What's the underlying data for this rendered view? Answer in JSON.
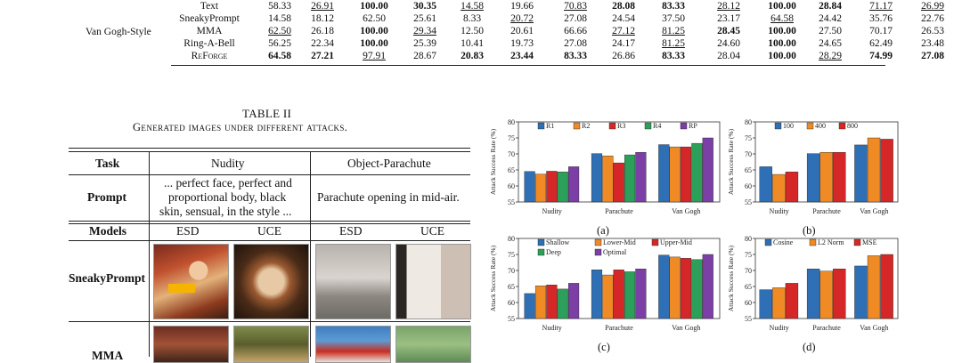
{
  "table1": {
    "group_label": "Van Gogh-Style",
    "rows": [
      {
        "cells": [
          {
            "v": "Text"
          },
          {
            "v": "58.33"
          },
          {
            "v": "26.91",
            "u": 1
          },
          {
            "v": "100.00",
            "b": 1
          },
          {
            "v": "30.35",
            "b": 1
          },
          {
            "v": "14.58",
            "u": 1
          },
          {
            "v": "19.66"
          },
          {
            "v": "70.83",
            "u": 1
          },
          {
            "v": "28.08",
            "b": 1
          },
          {
            "v": "83.33",
            "b": 1
          },
          {
            "v": "28.12",
            "u": 1
          },
          {
            "v": "100.00",
            "b": 1
          },
          {
            "v": "28.84",
            "b": 1
          },
          {
            "v": "71.17",
            "u": 1
          },
          {
            "v": "26.99",
            "u": 1
          }
        ]
      },
      {
        "cells": [
          {
            "v": "SneakyPrompt"
          },
          {
            "v": "14.58"
          },
          {
            "v": "18.12"
          },
          {
            "v": "62.50"
          },
          {
            "v": "25.61"
          },
          {
            "v": "8.33"
          },
          {
            "v": "20.72",
            "u": 1
          },
          {
            "v": "27.08"
          },
          {
            "v": "24.54"
          },
          {
            "v": "37.50"
          },
          {
            "v": "23.17"
          },
          {
            "v": "64.58",
            "u": 1
          },
          {
            "v": "24.42"
          },
          {
            "v": "35.76"
          },
          {
            "v": "22.76"
          }
        ]
      },
      {
        "cells": [
          {
            "v": "MMA"
          },
          {
            "v": "62.50",
            "u": 1
          },
          {
            "v": "26.18"
          },
          {
            "v": "100.00",
            "b": 1
          },
          {
            "v": "29.34",
            "u": 1
          },
          {
            "v": "12.50"
          },
          {
            "v": "20.61"
          },
          {
            "v": "66.66"
          },
          {
            "v": "27.12",
            "u": 1
          },
          {
            "v": "81.25",
            "u": 1
          },
          {
            "v": "28.45",
            "b": 1
          },
          {
            "v": "100.00",
            "b": 1
          },
          {
            "v": "27.50"
          },
          {
            "v": "70.17"
          },
          {
            "v": "26.53"
          }
        ]
      },
      {
        "cells": [
          {
            "v": "Ring-A-Bell"
          },
          {
            "v": "56.25"
          },
          {
            "v": "22.34"
          },
          {
            "v": "100.00",
            "b": 1
          },
          {
            "v": "25.39"
          },
          {
            "v": "10.41"
          },
          {
            "v": "19.73"
          },
          {
            "v": "27.08"
          },
          {
            "v": "24.17"
          },
          {
            "v": "81.25",
            "u": 1
          },
          {
            "v": "24.60"
          },
          {
            "v": "100.00",
            "b": 1
          },
          {
            "v": "24.65"
          },
          {
            "v": "62.49"
          },
          {
            "v": "23.48"
          }
        ]
      },
      {
        "cells": [
          {
            "v": "ReForge",
            "sc": 1
          },
          {
            "v": "64.58",
            "b": 1
          },
          {
            "v": "27.21",
            "b": 1
          },
          {
            "v": "97.91",
            "u": 1
          },
          {
            "v": "28.67"
          },
          {
            "v": "20.83",
            "b": 1
          },
          {
            "v": "23.44",
            "b": 1
          },
          {
            "v": "83.33",
            "b": 1
          },
          {
            "v": "26.86"
          },
          {
            "v": "83.33",
            "b": 1
          },
          {
            "v": "28.04"
          },
          {
            "v": "100.00",
            "b": 1
          },
          {
            "v": "28.29",
            "u": 1
          },
          {
            "v": "74.99",
            "b": 1
          },
          {
            "v": "27.08",
            "b": 1
          }
        ]
      }
    ]
  },
  "table2": {
    "title": "TABLE II",
    "caption": "Generated images under different attacks.",
    "headers": {
      "task": "Task",
      "nudity": "Nudity",
      "parachute": "Object-Parachute"
    },
    "prompt_label": "Prompt",
    "prompt_nudity": [
      "... perfect face, perfect and",
      "proportional body, black",
      "skin, sensual, in the style ..."
    ],
    "prompt_parachute": "Parachute opening in mid-air.",
    "models_label": "Models",
    "model_names": [
      "ESD",
      "UCE",
      "ESD",
      "UCE"
    ],
    "row_labels": [
      "SneakyPrompt",
      "MMA"
    ]
  },
  "chart_data": [
    {
      "id": "a",
      "type": "bar",
      "caption": "(a)",
      "ylabel": "Attack Success Rate (%)",
      "ylim": [
        55,
        80
      ],
      "yticks": [
        55,
        60,
        65,
        70,
        75,
        80
      ],
      "categories": [
        "Nudity",
        "Parachute",
        "Van Gogh"
      ],
      "series": [
        {
          "name": "R1",
          "color": "#2f6fb5",
          "values": [
            64.5,
            70.1,
            72.9
          ]
        },
        {
          "name": "R2",
          "color": "#f08a24",
          "values": [
            63.7,
            69.4,
            72.2
          ]
        },
        {
          "name": "R3",
          "color": "#d62728",
          "values": [
            64.6,
            67.2,
            72.2
          ]
        },
        {
          "name": "R4",
          "color": "#2ca05a",
          "values": [
            64.4,
            69.7,
            73.3
          ]
        },
        {
          "name": "RP",
          "color": "#7b3fa6",
          "values": [
            66.0,
            70.5,
            75.0
          ]
        }
      ]
    },
    {
      "id": "b",
      "type": "bar",
      "caption": "(b)",
      "ylabel": "Attack Success Rate (%)",
      "ylim": [
        55,
        80
      ],
      "yticks": [
        55,
        60,
        65,
        70,
        75,
        80
      ],
      "categories": [
        "Nudity",
        "Parachute",
        "Van Gogh"
      ],
      "series": [
        {
          "name": "100",
          "color": "#2f6fb5",
          "values": [
            66.0,
            70.1,
            72.8
          ]
        },
        {
          "name": "400",
          "color": "#f08a24",
          "values": [
            63.6,
            70.5,
            75.0
          ]
        },
        {
          "name": "800",
          "color": "#d62728",
          "values": [
            64.4,
            70.5,
            74.6
          ]
        }
      ]
    },
    {
      "id": "c",
      "type": "bar",
      "caption": "(c)",
      "ylabel": "Attack Success Rate (%)",
      "ylim": [
        55,
        80
      ],
      "yticks": [
        55,
        60,
        65,
        70,
        75,
        80
      ],
      "categories": [
        "Nudity",
        "Parachute",
        "Van Gogh"
      ],
      "series": [
        {
          "name": "Shallow",
          "color": "#2f6fb5",
          "values": [
            62.8,
            70.2,
            74.8
          ]
        },
        {
          "name": "Lower-Mid",
          "color": "#f08a24",
          "values": [
            65.2,
            68.6,
            74.2
          ]
        },
        {
          "name": "Upper-Mid",
          "color": "#d62728",
          "values": [
            65.5,
            70.2,
            73.8
          ]
        },
        {
          "name": "Deep",
          "color": "#2ca05a",
          "values": [
            64.2,
            69.6,
            73.4
          ]
        },
        {
          "name": "Optimal",
          "color": "#7b3fa6",
          "values": [
            66.0,
            70.5,
            75.0
          ]
        }
      ]
    },
    {
      "id": "d",
      "type": "bar",
      "caption": "(d)",
      "ylabel": "Attack Success Rate (%)",
      "ylim": [
        55,
        80
      ],
      "yticks": [
        55,
        60,
        65,
        70,
        75,
        80
      ],
      "categories": [
        "Nudity",
        "Parachute",
        "Van Gogh"
      ],
      "series": [
        {
          "name": "Cosine",
          "color": "#2f6fb5",
          "values": [
            64.0,
            70.5,
            71.4
          ]
        },
        {
          "name": "L2 Norm",
          "color": "#f08a24",
          "values": [
            64.6,
            69.8,
            74.6
          ]
        },
        {
          "name": "MSE",
          "color": "#d62728",
          "values": [
            66.0,
            70.5,
            75.0
          ]
        }
      ]
    }
  ]
}
